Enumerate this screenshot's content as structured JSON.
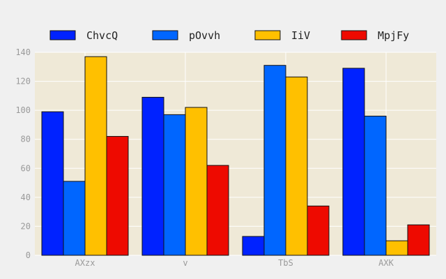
{
  "chart_data": {
    "type": "bar",
    "title": "",
    "xlabel": "",
    "ylabel": "",
    "categories": [
      "AXzx",
      "v",
      "TbS",
      "AXK"
    ],
    "series": [
      {
        "name": "ChvcQ",
        "color": "#0022ff",
        "values": [
          99,
          109,
          13,
          129
        ]
      },
      {
        "name": "pOvvh",
        "color": "#0066ff",
        "values": [
          51,
          97,
          131,
          96
        ]
      },
      {
        "name": "IiV",
        "color": "#ffc000",
        "values": [
          137,
          102,
          123,
          10
        ]
      },
      {
        "name": "MpjFy",
        "color": "#ee0a00",
        "values": [
          82,
          62,
          34,
          21
        ]
      }
    ],
    "ylim": [
      0,
      140
    ],
    "yticks": [
      0,
      20,
      40,
      60,
      80,
      100,
      120,
      140
    ],
    "grid": true,
    "legend_position": "top",
    "plot_background": "#efe9d7",
    "page_background": "#f0f0f0"
  }
}
